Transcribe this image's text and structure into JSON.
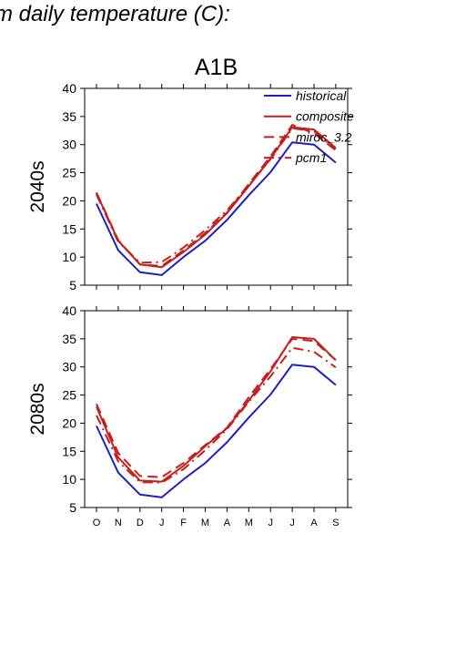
{
  "page": {
    "title": "m daily temperature (C):"
  },
  "chart_data": [
    {
      "type": "line",
      "title": "A1B",
      "ylabel": "2040s",
      "xlabel": "",
      "categories": [
        "O",
        "N",
        "D",
        "J",
        "F",
        "M",
        "A",
        "M",
        "J",
        "J",
        "A",
        "S"
      ],
      "yticks": [
        5,
        10,
        15,
        20,
        25,
        30,
        35,
        40
      ],
      "ylim": [
        5,
        40
      ],
      "grid": false,
      "legend_position": "top-right",
      "series": [
        {
          "name": "historical",
          "color": "#1f1fbf",
          "style": "solid",
          "values": [
            19.5,
            11.2,
            7.3,
            6.8,
            10.0,
            12.9,
            16.6,
            21.0,
            25.1,
            30.4,
            30.0,
            26.8
          ]
        },
        {
          "name": "composite",
          "color": "#c41e1e",
          "style": "solid",
          "values": [
            21.4,
            12.9,
            8.7,
            8.2,
            10.9,
            14.0,
            17.8,
            22.6,
            27.5,
            33.1,
            32.7,
            29.4
          ]
        },
        {
          "name": "miroc_3.2",
          "color": "#c41e1e",
          "style": "dash",
          "values": [
            21.5,
            13.0,
            8.7,
            8.4,
            11.2,
            14.3,
            17.9,
            23.0,
            27.9,
            33.5,
            32.0,
            29.0
          ]
        },
        {
          "name": "pcm1",
          "color": "#c41e1e",
          "style": "dashdot",
          "values": [
            21.1,
            12.7,
            9.0,
            9.1,
            11.7,
            14.8,
            18.3,
            22.8,
            27.4,
            32.9,
            32.4,
            29.2
          ]
        }
      ]
    },
    {
      "type": "line",
      "title": "",
      "ylabel": "2080s",
      "xlabel": "",
      "categories": [
        "O",
        "N",
        "D",
        "J",
        "F",
        "M",
        "A",
        "M",
        "J",
        "J",
        "A",
        "S"
      ],
      "yticks": [
        5,
        10,
        15,
        20,
        25,
        30,
        35,
        40
      ],
      "ylim": [
        5,
        40
      ],
      "grid": false,
      "series": [
        {
          "name": "historical",
          "color": "#1f1fbf",
          "style": "solid",
          "values": [
            19.5,
            11.2,
            7.3,
            6.8,
            10.0,
            12.9,
            16.6,
            21.0,
            25.1,
            30.4,
            30.0,
            26.8
          ]
        },
        {
          "name": "composite",
          "color": "#c41e1e",
          "style": "solid",
          "values": [
            22.9,
            13.9,
            9.8,
            9.6,
            12.4,
            15.9,
            19.1,
            24.0,
            29.2,
            35.3,
            35.0,
            31.2
          ]
        },
        {
          "name": "miroc_3.2",
          "color": "#c41e1e",
          "style": "dash",
          "values": [
            23.4,
            14.7,
            10.6,
            10.4,
            12.9,
            16.1,
            19.2,
            24.6,
            29.6,
            35.0,
            34.6,
            31.2
          ]
        },
        {
          "name": "pcm1",
          "color": "#c41e1e",
          "style": "dashdot",
          "values": [
            21.4,
            13.2,
            9.5,
            9.4,
            11.8,
            15.2,
            18.9,
            23.8,
            28.3,
            33.4,
            32.7,
            29.9
          ]
        }
      ]
    }
  ]
}
